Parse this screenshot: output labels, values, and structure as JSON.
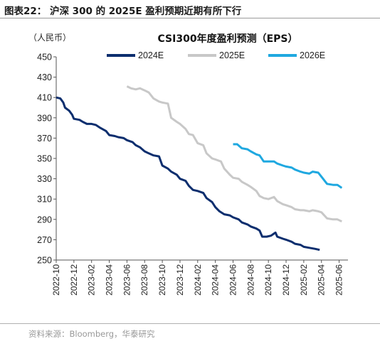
{
  "figure_title": "图表22：  沪深 300 的 2025E 盈利预期近期有所下行",
  "source": "资料来源：Bloomberg，华泰研究",
  "colors": {
    "2024E": "#0c2e6e",
    "2025E": "#c8c8c8",
    "2026E": "#1fa8e0"
  },
  "chart_data": {
    "type": "line",
    "title": "CSI300年度盈利预测（EPS）",
    "ylabel": "（人民币）",
    "ylim": [
      250,
      450
    ],
    "yticks": [
      250,
      270,
      290,
      310,
      330,
      350,
      370,
      390,
      410,
      430,
      450
    ],
    "xlim": [
      "2022-10",
      "2025-07"
    ],
    "xticks": [
      "2022-10",
      "2022-12",
      "2023-02",
      "2023-04",
      "2023-06",
      "2023-08",
      "2023-10",
      "2023-12",
      "2024-02",
      "2024-04",
      "2024-06",
      "2024-08",
      "2024-10",
      "2024-12",
      "2025-02",
      "2025-04",
      "2025-06"
    ],
    "legend_position": "top-center",
    "grid": false,
    "series": [
      {
        "name": "2024E",
        "color": "#0c2e6e",
        "width": 3,
        "points": [
          [
            "2022-10-01",
            410
          ],
          [
            "2022-10-15",
            409
          ],
          [
            "2022-10-25",
            405
          ],
          [
            "2022-11-01",
            400
          ],
          [
            "2022-11-15",
            397
          ],
          [
            "2022-11-25",
            393
          ],
          [
            "2022-12-01",
            389
          ],
          [
            "2022-12-20",
            388
          ],
          [
            "2023-01-01",
            386
          ],
          [
            "2023-01-15",
            384
          ],
          [
            "2023-02-01",
            384
          ],
          [
            "2023-02-15",
            383
          ],
          [
            "2023-03-01",
            380
          ],
          [
            "2023-03-20",
            377
          ],
          [
            "2023-04-01",
            373
          ],
          [
            "2023-04-20",
            372
          ],
          [
            "2023-05-01",
            371
          ],
          [
            "2023-05-20",
            370
          ],
          [
            "2023-06-01",
            368
          ],
          [
            "2023-06-20",
            366
          ],
          [
            "2023-07-01",
            363
          ],
          [
            "2023-07-15",
            361
          ],
          [
            "2023-08-01",
            357
          ],
          [
            "2023-08-15",
            355
          ],
          [
            "2023-09-01",
            353
          ],
          [
            "2023-09-20",
            352
          ],
          [
            "2023-10-01",
            343
          ],
          [
            "2023-10-20",
            340
          ],
          [
            "2023-11-01",
            337
          ],
          [
            "2023-11-20",
            334
          ],
          [
            "2023-12-01",
            330
          ],
          [
            "2023-12-20",
            328
          ],
          [
            "2024-01-01",
            323
          ],
          [
            "2024-01-15",
            319
          ],
          [
            "2024-02-01",
            318
          ],
          [
            "2024-02-20",
            316
          ],
          [
            "2024-03-01",
            311
          ],
          [
            "2024-03-20",
            307
          ],
          [
            "2024-04-01",
            302
          ],
          [
            "2024-04-15",
            298
          ],
          [
            "2024-05-01",
            295
          ],
          [
            "2024-05-20",
            294
          ],
          [
            "2024-06-01",
            292
          ],
          [
            "2024-06-20",
            290
          ],
          [
            "2024-07-01",
            287
          ],
          [
            "2024-07-20",
            285
          ],
          [
            "2024-08-01",
            283
          ],
          [
            "2024-08-20",
            281
          ],
          [
            "2024-09-01",
            279
          ],
          [
            "2024-09-10",
            273
          ],
          [
            "2024-09-25",
            273
          ],
          [
            "2024-10-10",
            274
          ],
          [
            "2024-10-25",
            277
          ],
          [
            "2024-11-01",
            273
          ],
          [
            "2024-11-20",
            271
          ],
          [
            "2024-12-01",
            270
          ],
          [
            "2024-12-20",
            268
          ],
          [
            "2025-01-01",
            266
          ],
          [
            "2025-01-20",
            265
          ],
          [
            "2025-02-01",
            263
          ],
          [
            "2025-02-20",
            262
          ],
          [
            "2025-03-10",
            261
          ],
          [
            "2025-03-25",
            260
          ]
        ]
      },
      {
        "name": "2025E",
        "color": "#c8c8c8",
        "width": 3,
        "points": [
          [
            "2023-06-01",
            421
          ],
          [
            "2023-06-15",
            419
          ],
          [
            "2023-07-01",
            418
          ],
          [
            "2023-07-15",
            419
          ],
          [
            "2023-08-01",
            417
          ],
          [
            "2023-08-15",
            415
          ],
          [
            "2023-09-01",
            409
          ],
          [
            "2023-09-20",
            406
          ],
          [
            "2023-10-01",
            405
          ],
          [
            "2023-10-20",
            404
          ],
          [
            "2023-11-01",
            390
          ],
          [
            "2023-11-20",
            386
          ],
          [
            "2023-12-01",
            384
          ],
          [
            "2023-12-20",
            379
          ],
          [
            "2024-01-01",
            374
          ],
          [
            "2024-01-15",
            373
          ],
          [
            "2024-02-01",
            365
          ],
          [
            "2024-02-20",
            363
          ],
          [
            "2024-03-01",
            355
          ],
          [
            "2024-03-20",
            350
          ],
          [
            "2024-04-01",
            349
          ],
          [
            "2024-04-20",
            347
          ],
          [
            "2024-05-01",
            340
          ],
          [
            "2024-05-20",
            334
          ],
          [
            "2024-06-01",
            331
          ],
          [
            "2024-06-20",
            330
          ],
          [
            "2024-07-01",
            327
          ],
          [
            "2024-07-20",
            324
          ],
          [
            "2024-08-01",
            322
          ],
          [
            "2024-08-20",
            318
          ],
          [
            "2024-09-01",
            313
          ],
          [
            "2024-09-15",
            311
          ],
          [
            "2024-10-01",
            310
          ],
          [
            "2024-10-20",
            312
          ],
          [
            "2024-11-01",
            308
          ],
          [
            "2024-11-20",
            305
          ],
          [
            "2024-12-01",
            304
          ],
          [
            "2024-12-20",
            302
          ],
          [
            "2025-01-01",
            300
          ],
          [
            "2025-01-20",
            299
          ],
          [
            "2025-02-01",
            299
          ],
          [
            "2025-02-20",
            298
          ],
          [
            "2025-03-01",
            299
          ],
          [
            "2025-03-20",
            298
          ],
          [
            "2025-04-01",
            297
          ],
          [
            "2025-04-20",
            291
          ],
          [
            "2025-05-10",
            290
          ],
          [
            "2025-05-25",
            290
          ],
          [
            "2025-06-10",
            288
          ]
        ]
      },
      {
        "name": "2026E",
        "color": "#1fa8e0",
        "width": 3,
        "points": [
          [
            "2024-06-01",
            364
          ],
          [
            "2024-06-15",
            364
          ],
          [
            "2024-07-01",
            360
          ],
          [
            "2024-07-20",
            359
          ],
          [
            "2024-08-01",
            357
          ],
          [
            "2024-08-20",
            354
          ],
          [
            "2024-09-01",
            353
          ],
          [
            "2024-09-15",
            347
          ],
          [
            "2024-10-01",
            347
          ],
          [
            "2024-10-20",
            347
          ],
          [
            "2024-11-01",
            345
          ],
          [
            "2024-11-20",
            343
          ],
          [
            "2024-12-01",
            342
          ],
          [
            "2024-12-20",
            341
          ],
          [
            "2025-01-01",
            339
          ],
          [
            "2025-01-20",
            337
          ],
          [
            "2025-02-01",
            336
          ],
          [
            "2025-02-20",
            335
          ],
          [
            "2025-03-01",
            337
          ],
          [
            "2025-03-20",
            336
          ],
          [
            "2025-04-01",
            332
          ],
          [
            "2025-04-20",
            325
          ],
          [
            "2025-05-10",
            324
          ],
          [
            "2025-05-25",
            324
          ],
          [
            "2025-06-10",
            321
          ]
        ]
      }
    ]
  }
}
